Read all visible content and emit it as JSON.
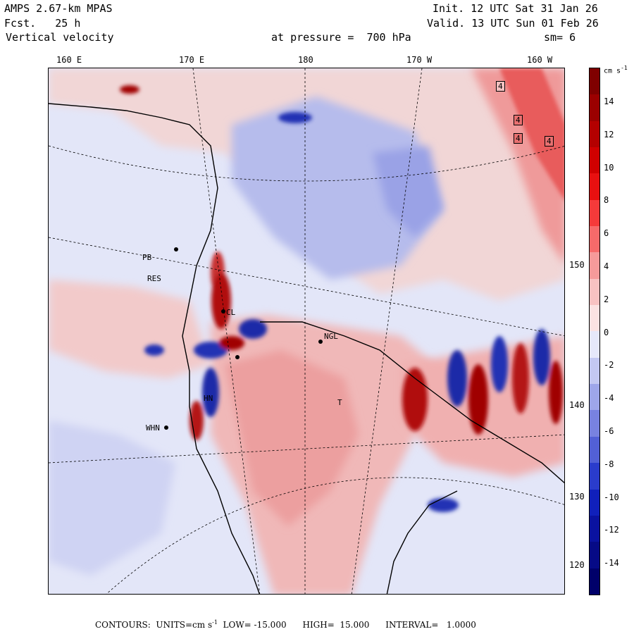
{
  "header": {
    "model": "AMPS 2.67-km MPAS",
    "fcst": "Fcst.   25 h",
    "field": "Vertical velocity",
    "init": "Init. 12 UTC Sat 31 Jan 26",
    "valid": "Valid. 13 UTC Sun 01 Feb 26",
    "level": "at pressure =  700 hPa",
    "smooth": "sm= 6"
  },
  "axes": {
    "top_lon": [
      "160 E",
      "170 E",
      "180",
      "170 W",
      "160 W"
    ],
    "right_lat": [
      "150 W",
      "140 W",
      "130 W",
      "120 W"
    ]
  },
  "colorbar": {
    "unit": "cm s",
    "unit_exp": "-1",
    "ticks": [
      "14",
      "12",
      "10",
      "8",
      "6",
      "4",
      "2",
      "0",
      "-2",
      "-4",
      "-6",
      "-8",
      "-10",
      "-12",
      "-14"
    ],
    "colors": [
      "#7f0000",
      "#9b0000",
      "#b40000",
      "#d00000",
      "#e81010",
      "#f53a3a",
      "#f66a6a",
      "#f69a9a",
      "#f8c2c2",
      "#fbe2e2",
      "#e6e8fa",
      "#c3c8f2",
      "#9ea6ea",
      "#7882e0",
      "#5260d6",
      "#2a3ccc",
      "#1020bb",
      "#0a12a0",
      "#060a86",
      "#00006a"
    ]
  },
  "stations": [
    "PB",
    "RES",
    "CL",
    "HN",
    "WHN",
    "NGL",
    "T",
    "4",
    "4",
    "4",
    "4"
  ],
  "footer": {
    "text1": "CONTOURS:  UNITS=cm s",
    "exp": "-1",
    "text2": "  LOW= -15.000      HIGH=  15.000      INTERVAL=   1.0000"
  },
  "map_colors": {
    "ocean_pink": "#f2c9c9",
    "pale_blue": "#dce0f6",
    "mid_blue": "#aeb4ea",
    "strong_red": "#c42020",
    "strong_blue": "#2233b8"
  }
}
